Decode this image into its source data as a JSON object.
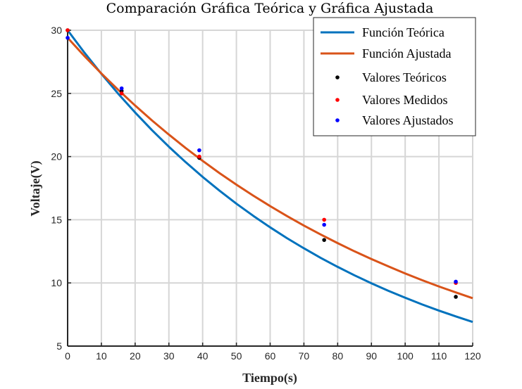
{
  "chart_data": {
    "type": "line",
    "title": "Comparación Gráfica Teórica y Gráfica Ajustada",
    "xlabel": "Tiempo(s)",
    "ylabel": "Voltaje(V)",
    "xlim": [
      0,
      120
    ],
    "ylim": [
      5,
      30
    ],
    "xticks": [
      "0",
      "10",
      "20",
      "30",
      "40",
      "50",
      "60",
      "70",
      "80",
      "90",
      "100",
      "110",
      "120"
    ],
    "yticks": [
      "5",
      "10",
      "15",
      "20",
      "25",
      "30"
    ],
    "grid": true,
    "legend_position": "top-right",
    "series": [
      {
        "name": "Función Teórica",
        "style": "line",
        "color": "#0072BD",
        "x": [
          0,
          5,
          10,
          15,
          20,
          25,
          30,
          35,
          40,
          45,
          50,
          55,
          60,
          65,
          70,
          75,
          80,
          85,
          90,
          95,
          100,
          105,
          110,
          115,
          120
        ],
        "y": [
          30.0,
          28.22,
          26.55,
          24.97,
          23.49,
          22.09,
          20.78,
          19.55,
          18.39,
          17.3,
          16.27,
          15.31,
          14.4,
          13.54,
          12.74,
          11.98,
          11.27,
          10.6,
          9.97,
          9.38,
          8.83,
          8.3,
          7.81,
          7.35,
          6.91
        ]
      },
      {
        "name": "Función Ajustada",
        "style": "line",
        "color": "#D95319",
        "x": [
          0,
          5,
          10,
          15,
          20,
          25,
          30,
          35,
          40,
          45,
          50,
          55,
          60,
          65,
          70,
          75,
          80,
          85,
          90,
          95,
          100,
          105,
          110,
          115,
          120
        ],
        "y": [
          29.4,
          27.95,
          26.58,
          25.28,
          24.04,
          22.86,
          21.74,
          20.67,
          19.66,
          18.69,
          17.78,
          16.91,
          16.08,
          15.29,
          14.54,
          13.83,
          13.15,
          12.5,
          11.89,
          11.31,
          10.75,
          10.22,
          9.72,
          9.25,
          8.79
        ]
      },
      {
        "name": "Valores Teóricos",
        "style": "markers",
        "color": "#000000",
        "x": [
          0,
          16,
          39,
          76,
          115
        ],
        "y": [
          30.0,
          25.2,
          19.9,
          13.4,
          8.9
        ]
      },
      {
        "name": "Valores Medidos",
        "style": "markers",
        "color": "#FF0000",
        "x": [
          0,
          16,
          39,
          76,
          115
        ],
        "y": [
          30.0,
          25.0,
          20.0,
          15.0,
          10.0
        ]
      },
      {
        "name": "Valores Ajustados",
        "style": "markers",
        "color": "#0000FF",
        "x": [
          0,
          16,
          39,
          76,
          115
        ],
        "y": [
          29.4,
          25.4,
          20.5,
          14.6,
          10.1
        ]
      }
    ]
  }
}
